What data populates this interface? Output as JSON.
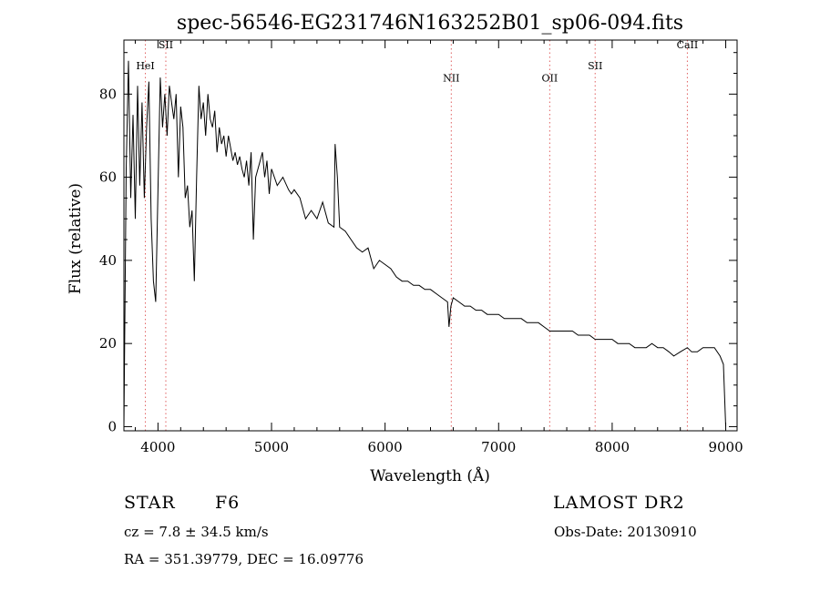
{
  "chart_data": {
    "type": "line",
    "title": "spec-56546-EG231746N163252B01_sp06-094.fits",
    "xlabel": "Wavelength (Å)",
    "ylabel": "Flux (relative)",
    "xlim": [
      3700,
      9100
    ],
    "ylim": [
      -1,
      93
    ],
    "xticks": [
      4000,
      5000,
      6000,
      7000,
      8000,
      9000
    ],
    "yticks": [
      0,
      20,
      40,
      60,
      80
    ],
    "line_color": "#000000",
    "line_marker_color": "#e06060",
    "lines": [
      {
        "label": "HeI",
        "x": 3889,
        "label_y": 86
      },
      {
        "label": "SII",
        "x": 4069,
        "label_y": 91
      },
      {
        "label": "NII",
        "x": 6583,
        "label_y": 83
      },
      {
        "label": "OII",
        "x": 7450,
        "label_y": 83
      },
      {
        "label": "SII",
        "x": 7850,
        "label_y": 86
      },
      {
        "label": "CaII",
        "x": 8662,
        "label_y": 91
      }
    ],
    "series": [
      {
        "x": [
          3700,
          3720,
          3740,
          3760,
          3780,
          3800,
          3820,
          3840,
          3860,
          3880,
          3900,
          3920,
          3940,
          3960,
          3980,
          4000,
          4020,
          4040,
          4060,
          4080,
          4100,
          4120,
          4140,
          4160,
          4180,
          4200,
          4220,
          4240,
          4260,
          4280,
          4300,
          4320,
          4340,
          4360,
          4380,
          4400,
          4420,
          4440,
          4460,
          4480,
          4500,
          4520,
          4540,
          4560,
          4580,
          4600,
          4620,
          4640,
          4660,
          4680,
          4700,
          4720,
          4740,
          4760,
          4780,
          4800,
          4820,
          4840,
          4860,
          4880,
          4900,
          4920,
          4940,
          4960,
          4980,
          5000,
          5050,
          5100,
          5150,
          5175,
          5200,
          5250,
          5300,
          5350,
          5400,
          5450,
          5500,
          5550,
          5560,
          5580,
          5600,
          5650,
          5700,
          5750,
          5800,
          5850,
          5890,
          5900,
          5950,
          6000,
          6050,
          6100,
          6150,
          6200,
          6250,
          6300,
          6350,
          6400,
          6450,
          6500,
          6550,
          6563,
          6580,
          6600,
          6650,
          6700,
          6750,
          6800,
          6850,
          6900,
          6950,
          7000,
          7050,
          7100,
          7150,
          7200,
          7250,
          7300,
          7350,
          7400,
          7450,
          7500,
          7550,
          7600,
          7650,
          7700,
          7750,
          7800,
          7850,
          7900,
          7950,
          8000,
          8050,
          8100,
          8150,
          8200,
          8250,
          8300,
          8350,
          8400,
          8450,
          8500,
          8542,
          8600,
          8662,
          8700,
          8750,
          8800,
          8850,
          8900,
          8950,
          8980,
          9000
        ],
        "y": [
          0,
          62,
          88,
          55,
          75,
          50,
          82,
          58,
          78,
          55,
          72,
          83,
          50,
          35,
          30,
          57,
          84,
          72,
          80,
          70,
          82,
          78,
          74,
          80,
          60,
          77,
          72,
          55,
          58,
          48,
          52,
          35,
          60,
          82,
          74,
          78,
          70,
          80,
          74,
          72,
          76,
          66,
          72,
          68,
          70,
          65,
          70,
          67,
          64,
          66,
          63,
          65,
          62,
          60,
          64,
          58,
          66,
          45,
          60,
          62,
          64,
          66,
          60,
          64,
          56,
          62,
          58,
          60,
          57,
          56,
          57,
          55,
          50,
          52,
          50,
          54,
          49,
          48,
          68,
          60,
          48,
          47,
          45,
          43,
          42,
          43,
          39,
          38,
          40,
          39,
          38,
          36,
          35,
          35,
          34,
          34,
          33,
          33,
          32,
          31,
          30,
          24,
          29,
          31,
          30,
          29,
          29,
          28,
          28,
          27,
          27,
          27,
          26,
          26,
          26,
          26,
          25,
          25,
          25,
          24,
          23,
          23,
          23,
          23,
          23,
          22,
          22,
          22,
          21,
          21,
          21,
          21,
          20,
          20,
          20,
          19,
          19,
          19,
          20,
          19,
          19,
          18,
          17,
          18,
          19,
          18,
          18,
          19,
          19,
          19,
          17,
          15,
          0
        ]
      }
    ]
  },
  "info": {
    "object": "STAR",
    "subclass": "F6",
    "survey": "LAMOST DR2",
    "cz": "cz = 7.8 ± 34.5 km/s",
    "obs_date": "Obs-Date: 20130910",
    "coords": "RA = 351.39779, DEC =  16.09776"
  }
}
